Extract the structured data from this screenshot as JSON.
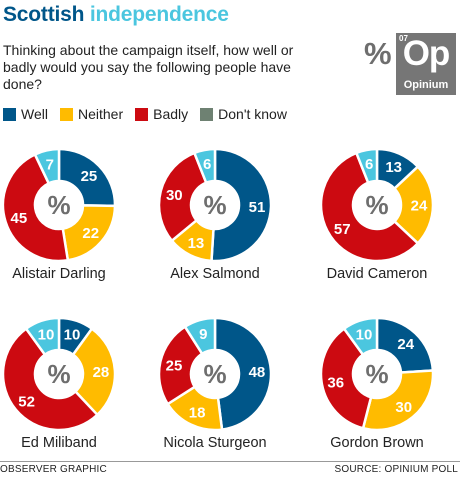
{
  "header": {
    "title_word1": "Scottish",
    "title_word2": "independence",
    "question": "Thinking about the campaign itself, how well or badly would you say the following people have done?"
  },
  "logo": {
    "percent_symbol": "%",
    "number": "07",
    "symbol": "Op",
    "name": "Opinium"
  },
  "legend": [
    {
      "label": "Well",
      "color": "#005689"
    },
    {
      "label": "Neither",
      "color": "#ffbb00"
    },
    {
      "label": "Badly",
      "color": "#cc0a11"
    },
    {
      "label": "Don't know",
      "color": "#6e8172"
    }
  ],
  "footer": {
    "credit": "OBSERVER GRAPHIC",
    "source": "SOURCE: OPINIUM POLL"
  },
  "chart_data": {
    "type": "pie",
    "variant": "donut",
    "center_label": "%",
    "categories": [
      "Well",
      "Neither",
      "Badly",
      "Don't know"
    ],
    "colors": [
      "#005689",
      "#ffbb00",
      "#cc0a11",
      "#4bc6df"
    ],
    "charts": [
      {
        "name": "Alistair Darling",
        "values": [
          25,
          22,
          45,
          7
        ]
      },
      {
        "name": "Alex Salmond",
        "values": [
          51,
          13,
          30,
          6
        ]
      },
      {
        "name": "David Cameron",
        "values": [
          13,
          24,
          57,
          6
        ]
      },
      {
        "name": "Ed Miliband",
        "values": [
          10,
          28,
          52,
          10
        ]
      },
      {
        "name": "Nicola Sturgeon",
        "values": [
          48,
          18,
          25,
          9
        ]
      },
      {
        "name": "Gordon Brown",
        "values": [
          24,
          30,
          36,
          10
        ]
      }
    ]
  }
}
